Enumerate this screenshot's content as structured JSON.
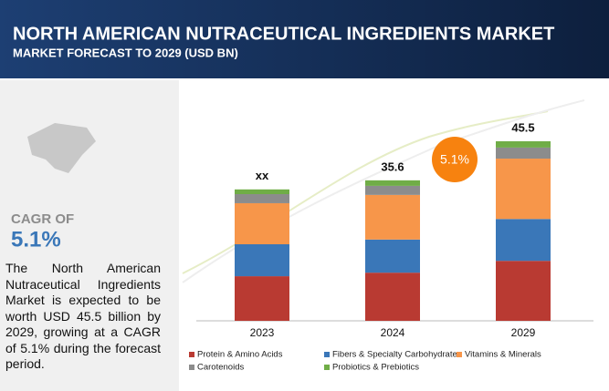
{
  "chart_data": {
    "type": "stacked_bar",
    "title": "NORTH AMERICAN NUTRACEUTICAL INGREDIENTS MARKET",
    "subtitle": "MARKET FORECAST TO 2029 (USD BN)",
    "cagr_heading": "CAGR OF",
    "cagr_value": "5.1%",
    "description": "The North American Nutraceutical Ingredients Market is expected to be worth USD 45.5 billion by 2029, growing at a CAGR of 5.1% during the forecast period.",
    "bubble_label": "5.1%",
    "categories": [
      "2023",
      "2024",
      "2029"
    ],
    "total_labels": [
      "xx",
      "35.6",
      "45.5"
    ],
    "series": [
      {
        "name": "Protein & Amino Acids",
        "color": "#b93a32",
        "values": [
          11.3,
          12.2,
          15.2
        ]
      },
      {
        "name": "Fibers & Specialty Carbohydrates",
        "color": "#3a77b8",
        "values": [
          8.1,
          8.4,
          10.6
        ]
      },
      {
        "name": "Vitamins & Minerals",
        "color": "#f7964a",
        "values": [
          10.4,
          11.3,
          15.3
        ]
      },
      {
        "name": "Carotenoids",
        "color": "#8c8c8c",
        "values": [
          2.3,
          2.3,
          2.8
        ]
      },
      {
        "name": "Probiotics & Prebiotics",
        "color": "#70ad47",
        "values": [
          1.2,
          1.4,
          1.6
        ]
      }
    ]
  }
}
